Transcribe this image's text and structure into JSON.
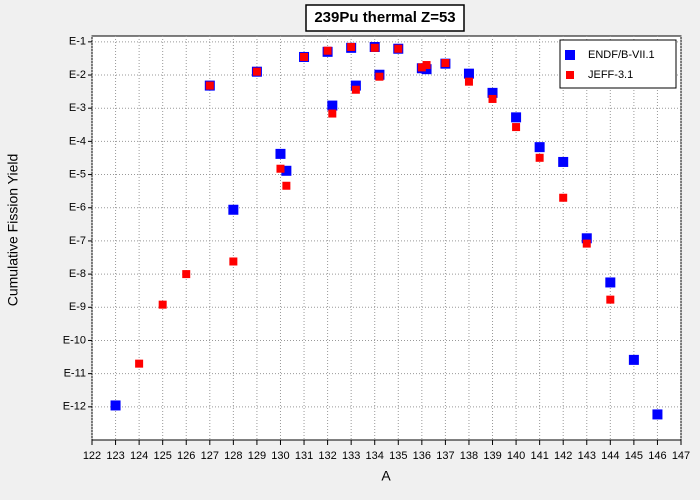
{
  "chart_data": {
    "type": "scatter",
    "title": "239Pu thermal Z=53",
    "x_label": "A",
    "y_label": "Cumulative Fission Yield",
    "log_y": true,
    "grid": true,
    "legend": "top-right",
    "xlim": [
      122,
      147
    ],
    "xticks": [
      122,
      123,
      124,
      125,
      126,
      127,
      128,
      129,
      130,
      131,
      132,
      133,
      134,
      135,
      136,
      137,
      138,
      139,
      140,
      141,
      142,
      143,
      144,
      145,
      146,
      147
    ],
    "ylim": [
      1e-13,
      0.15
    ],
    "yticks": [
      {
        "value": 0.1,
        "label": "E-1"
      },
      {
        "value": 0.01,
        "label": "E-2"
      },
      {
        "value": 0.001,
        "label": "E-3"
      },
      {
        "value": 0.0001,
        "label": "E-4"
      },
      {
        "value": 1e-05,
        "label": "E-5"
      },
      {
        "value": 1e-06,
        "label": "E-6"
      },
      {
        "value": 1e-07,
        "label": "E-7"
      },
      {
        "value": 1e-08,
        "label": "E-8"
      },
      {
        "value": 1e-09,
        "label": "E-9"
      },
      {
        "value": 1e-10,
        "label": "E-10"
      },
      {
        "value": 1e-11,
        "label": "E-11"
      },
      {
        "value": 1e-12,
        "label": "E-12"
      }
    ],
    "series": [
      {
        "name": "ENDF/B-VII.1",
        "color": "#0000ff",
        "x": [
          123,
          127,
          128,
          129,
          130,
          130.25,
          131,
          132,
          132.2,
          133,
          133.2,
          134,
          134.2,
          135,
          136,
          136.2,
          137,
          138,
          139,
          140,
          141,
          142,
          143,
          144,
          145,
          146
        ],
        "values": [
          1.1e-12,
          0.0048,
          8.7e-07,
          0.0126,
          4.2e-05,
          1.3e-05,
          0.035,
          0.05,
          0.0012,
          0.066,
          0.0048,
          0.07,
          0.0102,
          0.062,
          0.016,
          0.015,
          0.022,
          0.011,
          0.0029,
          0.00053,
          6.7e-05,
          2.4e-05,
          1.2e-07,
          5.6e-09,
          2.6e-11,
          5.9e-13
        ]
      },
      {
        "name": "JEFF-3.1",
        "color": "#ff0000",
        "x": [
          124,
          125,
          126,
          127,
          128,
          129,
          130,
          130.25,
          131,
          132,
          132.2,
          133,
          133.2,
          134,
          134.2,
          135,
          136,
          136.2,
          137,
          138,
          139,
          140,
          141,
          142,
          143,
          144
        ],
        "values": [
          2e-11,
          1.2e-09,
          1e-08,
          0.0048,
          2.4e-08,
          0.0126,
          1.5e-05,
          4.6e-06,
          0.035,
          0.054,
          0.00069,
          0.07,
          0.0036,
          0.066,
          0.0089,
          0.062,
          0.017,
          0.02,
          0.023,
          0.0063,
          0.0019,
          0.00027,
          3.2e-05,
          2e-06,
          8.3e-08,
          1.7e-09
        ]
      }
    ]
  }
}
